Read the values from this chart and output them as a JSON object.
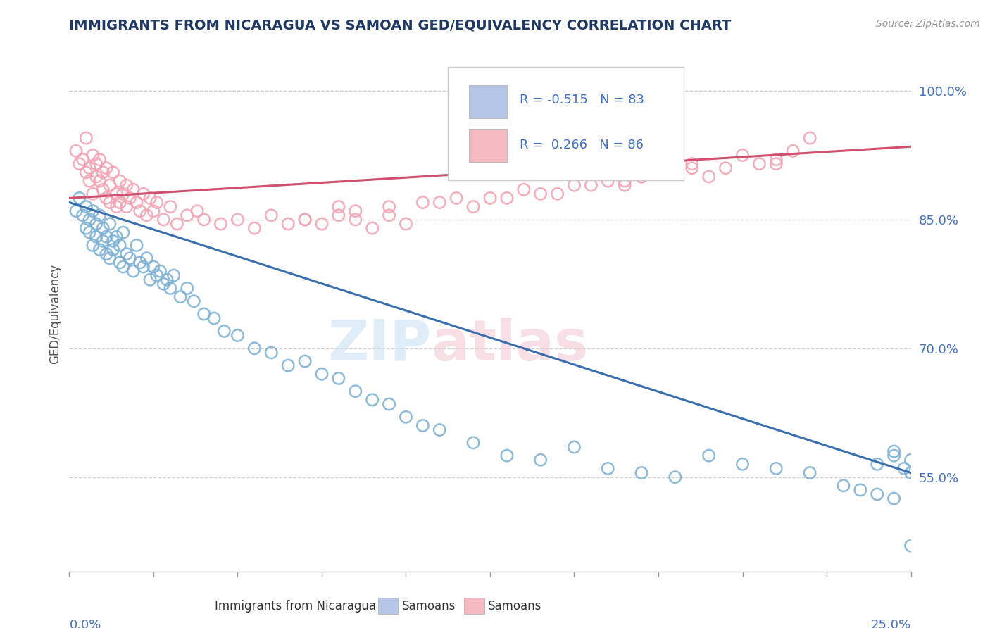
{
  "title": "IMMIGRANTS FROM NICARAGUA VS SAMOAN GED/EQUIVALENCY CORRELATION CHART",
  "source": "Source: ZipAtlas.com",
  "ylabel": "GED/Equivalency",
  "right_yticks": [
    55.0,
    70.0,
    85.0,
    100.0
  ],
  "xmin": 0.0,
  "xmax": 25.0,
  "ymin": 44.0,
  "ymax": 104.0,
  "blue_color": "#7bafd4",
  "pink_color": "#f4a0b0",
  "blue_line_color": "#3a6faf",
  "pink_line_color": "#d05070",
  "legend_blue_fill": "#b4c7e7",
  "legend_pink_fill": "#f4b8c1",
  "background_color": "#ffffff",
  "title_color": "#1f3864",
  "axis_label_color": "#4472c4",
  "watermark_zip": "ZIP",
  "watermark_atlas": "atlas",
  "blue_x": [
    0.2,
    0.3,
    0.4,
    0.5,
    0.5,
    0.6,
    0.6,
    0.7,
    0.7,
    0.8,
    0.8,
    0.9,
    0.9,
    1.0,
    1.0,
    1.1,
    1.1,
    1.2,
    1.2,
    1.3,
    1.3,
    1.4,
    1.5,
    1.5,
    1.6,
    1.6,
    1.7,
    1.8,
    1.9,
    2.0,
    2.1,
    2.2,
    2.3,
    2.4,
    2.5,
    2.6,
    2.7,
    2.8,
    2.9,
    3.0,
    3.1,
    3.3,
    3.5,
    3.7,
    4.0,
    4.3,
    4.6,
    5.0,
    5.5,
    6.0,
    6.5,
    7.0,
    7.5,
    8.0,
    8.5,
    9.0,
    9.5,
    10.0,
    10.5,
    11.0,
    12.0,
    13.0,
    14.0,
    15.0,
    16.0,
    17.0,
    18.0,
    19.0,
    20.0,
    21.0,
    22.0,
    23.0,
    23.5,
    24.0,
    24.5,
    25.0,
    25.0,
    24.8,
    24.5,
    25.2,
    24.0,
    24.5,
    25.0
  ],
  "blue_y": [
    86.0,
    87.5,
    85.5,
    86.5,
    84.0,
    85.0,
    83.5,
    86.0,
    82.0,
    84.5,
    83.0,
    85.5,
    81.5,
    84.0,
    82.5,
    83.0,
    81.0,
    84.5,
    80.5,
    82.5,
    81.5,
    83.0,
    82.0,
    80.0,
    83.5,
    79.5,
    81.0,
    80.5,
    79.0,
    82.0,
    80.0,
    79.5,
    80.5,
    78.0,
    79.5,
    78.5,
    79.0,
    77.5,
    78.0,
    77.0,
    78.5,
    76.0,
    77.0,
    75.5,
    74.0,
    73.5,
    72.0,
    71.5,
    70.0,
    69.5,
    68.0,
    68.5,
    67.0,
    66.5,
    65.0,
    64.0,
    63.5,
    62.0,
    61.0,
    60.5,
    59.0,
    57.5,
    57.0,
    58.5,
    56.0,
    55.5,
    55.0,
    57.5,
    56.5,
    56.0,
    55.5,
    54.0,
    53.5,
    53.0,
    52.5,
    57.0,
    55.5,
    56.0,
    57.5,
    55.0,
    56.5,
    58.0,
    47.0
  ],
  "pink_x": [
    0.2,
    0.3,
    0.4,
    0.5,
    0.5,
    0.6,
    0.6,
    0.7,
    0.7,
    0.8,
    0.8,
    0.9,
    0.9,
    1.0,
    1.0,
    1.1,
    1.1,
    1.2,
    1.2,
    1.3,
    1.4,
    1.4,
    1.5,
    1.5,
    1.6,
    1.7,
    1.7,
    1.8,
    1.9,
    2.0,
    2.1,
    2.2,
    2.3,
    2.4,
    2.5,
    2.6,
    2.8,
    3.0,
    3.2,
    3.5,
    3.8,
    4.0,
    4.5,
    5.0,
    5.5,
    6.0,
    6.5,
    7.0,
    7.5,
    8.0,
    8.5,
    9.0,
    9.5,
    10.0,
    11.0,
    12.0,
    13.0,
    14.5,
    15.5,
    17.0,
    18.5,
    20.0,
    21.0,
    21.5,
    22.0,
    16.0,
    17.5,
    16.5,
    17.0,
    18.0,
    18.5,
    19.0,
    19.5,
    20.5,
    21.0,
    8.5,
    12.5,
    7.0,
    9.5,
    10.5,
    8.0,
    11.5,
    13.5,
    14.0,
    15.0,
    16.5
  ],
  "pink_y": [
    93.0,
    91.5,
    92.0,
    90.5,
    94.5,
    91.0,
    89.5,
    92.5,
    88.0,
    90.0,
    91.5,
    89.5,
    92.0,
    88.5,
    90.5,
    87.5,
    91.0,
    89.0,
    87.0,
    90.5,
    88.0,
    86.5,
    89.5,
    87.0,
    88.0,
    89.0,
    86.5,
    87.5,
    88.5,
    87.0,
    86.0,
    88.0,
    85.5,
    87.5,
    86.0,
    87.0,
    85.0,
    86.5,
    84.5,
    85.5,
    86.0,
    85.0,
    84.5,
    85.0,
    84.0,
    85.5,
    84.5,
    85.0,
    84.5,
    86.5,
    85.0,
    84.0,
    85.5,
    84.5,
    87.0,
    86.5,
    87.5,
    88.0,
    89.0,
    90.0,
    91.0,
    92.5,
    91.5,
    93.0,
    94.5,
    89.5,
    90.5,
    89.0,
    90.0,
    90.5,
    91.5,
    90.0,
    91.0,
    91.5,
    92.0,
    86.0,
    87.5,
    85.0,
    86.5,
    87.0,
    85.5,
    87.5,
    88.5,
    88.0,
    89.0,
    89.5
  ]
}
